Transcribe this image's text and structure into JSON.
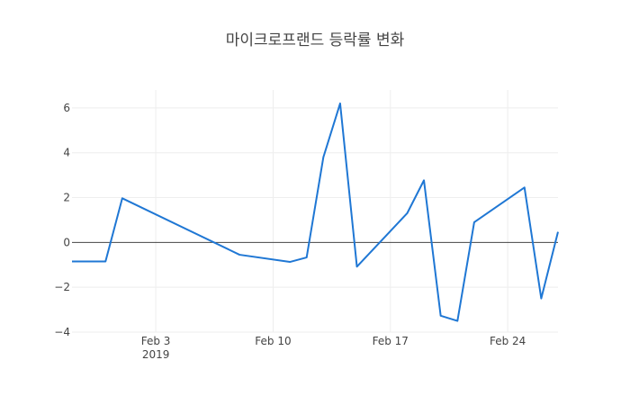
{
  "chart_data": {
    "type": "line",
    "title": "마이크로프랜드 등락률 변화",
    "xlabel": "",
    "ylabel": "",
    "x_range": [
      "2019-01-29",
      "2019-02-27"
    ],
    "ylim": [
      -4,
      6.8
    ],
    "grid": true,
    "legend": "none",
    "x_ticks": [
      {
        "date": "2019-02-03",
        "label": "Feb 3",
        "sublabel": "2019"
      },
      {
        "date": "2019-02-10",
        "label": "Feb 10",
        "sublabel": ""
      },
      {
        "date": "2019-02-17",
        "label": "Feb 17",
        "sublabel": ""
      },
      {
        "date": "2019-02-24",
        "label": "Feb 24",
        "sublabel": ""
      }
    ],
    "y_ticks": [
      {
        "value": 6,
        "label": "6"
      },
      {
        "value": 4,
        "label": "4"
      },
      {
        "value": 2,
        "label": "2"
      },
      {
        "value": 0,
        "label": "0"
      },
      {
        "value": -2,
        "label": "−2"
      },
      {
        "value": -4,
        "label": "−4"
      }
    ],
    "series": [
      {
        "color": "#1f77d4",
        "x": [
          "2019-01-29",
          "2019-01-31",
          "2019-02-01",
          "2019-02-08",
          "2019-02-11",
          "2019-02-12",
          "2019-02-13",
          "2019-02-14",
          "2019-02-15",
          "2019-02-18",
          "2019-02-19",
          "2019-02-20",
          "2019-02-21",
          "2019-02-22",
          "2019-02-25",
          "2019-02-26",
          "2019-02-27"
        ],
        "y": [
          -0.85,
          -0.85,
          1.97,
          -0.55,
          -0.87,
          -0.67,
          3.8,
          6.2,
          -1.08,
          1.3,
          2.77,
          -3.27,
          -3.5,
          0.9,
          2.45,
          -2.5,
          0.47
        ]
      }
    ]
  }
}
